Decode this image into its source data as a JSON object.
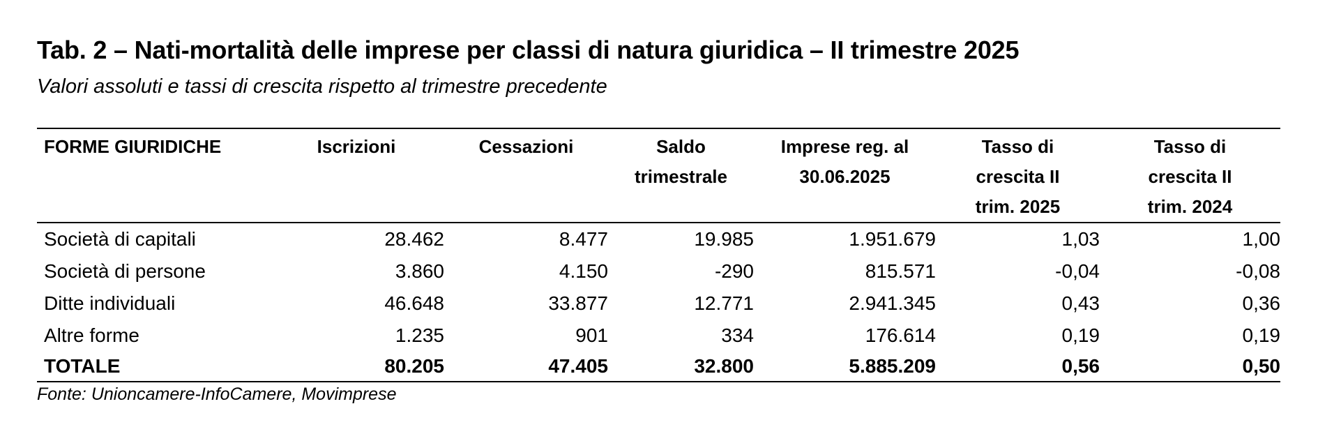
{
  "title": "Tab. 2 – Nati-mortalità delle imprese per classi di natura giuridica – II trimestre 2025",
  "subtitle": "Valori assoluti e tassi di crescita rispetto al trimestre precedente",
  "table": {
    "headers": [
      [
        "FORME GIURIDICHE"
      ],
      [
        "Iscrizioni"
      ],
      [
        "Cessazioni"
      ],
      [
        "Saldo",
        "trimestrale"
      ],
      [
        "Imprese reg.  al",
        "30.06.2025"
      ],
      [
        "Tasso di",
        "crescita  II",
        "trim. 2025"
      ],
      [
        "Tasso di",
        "crescita  II",
        "trim. 2024"
      ]
    ],
    "rows": [
      [
        "Società di capitali",
        "28.462",
        "8.477",
        "19.985",
        "1.951.679",
        "1,03",
        "1,00"
      ],
      [
        "Società di persone",
        "3.860",
        "4.150",
        "-290",
        "815.571",
        "-0,04",
        "-0,08"
      ],
      [
        "Ditte individuali",
        "46.648",
        "33.877",
        "12.771",
        "2.941.345",
        "0,43",
        "0,36"
      ],
      [
        "Altre forme",
        "1.235",
        "901",
        "334",
        "176.614",
        "0,19",
        "0,19"
      ]
    ],
    "total": [
      "TOTALE",
      "80.205",
      "47.405",
      "32.800",
      "5.885.209",
      "0,56",
      "0,50"
    ]
  },
  "source": "Fonte: Unioncamere-InfoCamere, Movimprese"
}
